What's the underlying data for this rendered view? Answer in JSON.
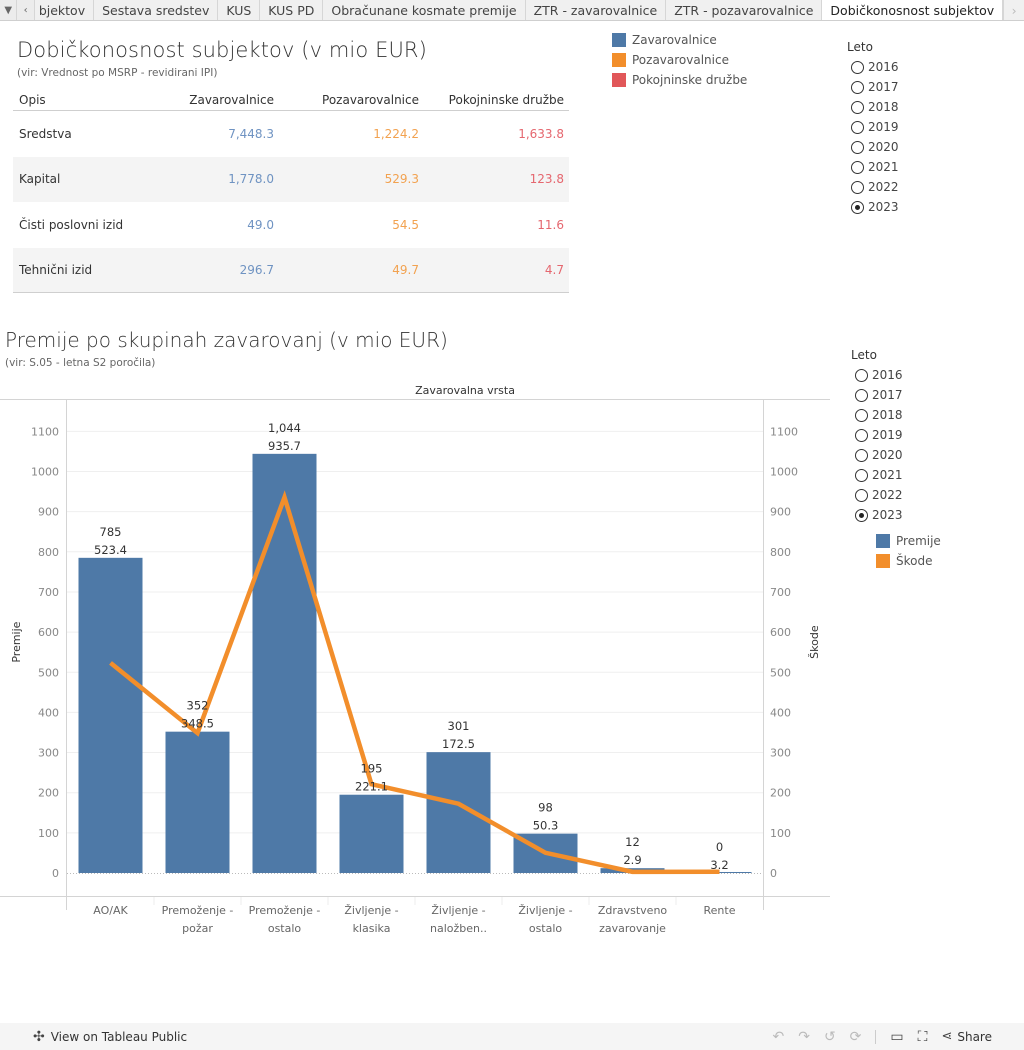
{
  "tabs": {
    "menu_icon": "▼",
    "prev_icon": "‹",
    "next_icon": "›",
    "items": [
      {
        "label": "bjektov",
        "active": false
      },
      {
        "label": "Sestava sredstev",
        "active": false
      },
      {
        "label": "KUS",
        "active": false
      },
      {
        "label": "KUS PD",
        "active": false
      },
      {
        "label": "Obračunane kosmate premije",
        "active": false
      },
      {
        "label": "ZTR - zavarovalnice",
        "active": false
      },
      {
        "label": "ZTR - pozavarovalnice",
        "active": false
      },
      {
        "label": "Dobičkonosnost subjektov",
        "active": true
      }
    ]
  },
  "section1": {
    "title": "Dobičkonosnost subjektov (v mio EUR)",
    "subtitle": "(vir: Vrednost po MSRP -  revidirani IPI)",
    "table": {
      "headers": [
        "Opis",
        "Zavarovalnice",
        "Pozavarovalnice",
        "Pokojninske družbe"
      ],
      "rows": [
        {
          "label": "Sredstva",
          "zav": "7,448.3",
          "poz": "1,224.2",
          "pok": "1,633.8"
        },
        {
          "label": "Kapital",
          "zav": "1,778.0",
          "poz": "529.3",
          "pok": "123.8"
        },
        {
          "label": "Čisti poslovni izid",
          "zav": "49.0",
          "poz": "54.5",
          "pok": "11.6"
        },
        {
          "label": "Tehnični izid",
          "zav": "296.7",
          "poz": "49.7",
          "pok": "4.7"
        }
      ]
    },
    "legend": [
      {
        "label": "Zavarovalnice",
        "color": "#4e79a7"
      },
      {
        "label": "Pozavarovalnice",
        "color": "#f28e2b"
      },
      {
        "label": "Pokojninske družbe",
        "color": "#e15759"
      }
    ],
    "filter": {
      "title": "Leto",
      "options": [
        "2016",
        "2017",
        "2018",
        "2019",
        "2020",
        "2021",
        "2022",
        "2023"
      ],
      "selected": "2023"
    }
  },
  "section2": {
    "title": "Premije po skupinah zavarovanj (v mio EUR)",
    "subtitle": "(vir: S.05 - letna S2 poročila)",
    "filter": {
      "title": "Leto",
      "options": [
        "2016",
        "2017",
        "2018",
        "2019",
        "2020",
        "2021",
        "2022",
        "2023"
      ],
      "selected": "2023"
    },
    "legend": [
      {
        "label": "Premije",
        "color": "#4e79a7"
      },
      {
        "label": "Škode",
        "color": "#f28e2b"
      }
    ]
  },
  "chart_data": {
    "type": "bar",
    "title": "Zavarovalna vrsta",
    "xlabel": "Zavarovalna vrsta",
    "ylabel": "Premije",
    "y2label": "Škode",
    "ylim": [
      0,
      1180
    ],
    "y2lim": [
      0,
      1180
    ],
    "yticks": [
      0,
      100,
      200,
      300,
      400,
      500,
      600,
      700,
      800,
      900,
      1000,
      1100
    ],
    "grid": true,
    "legend_position": "right",
    "categories": [
      [
        "AO/AK"
      ],
      [
        "Premoženje -",
        "požar"
      ],
      [
        "Premoženje -",
        "ostalo"
      ],
      [
        "Življenje -",
        "klasika"
      ],
      [
        "Življenje -",
        "naložben.."
      ],
      [
        "Življenje -",
        "ostalo"
      ],
      [
        "Zdravstveno",
        "zavarovanje"
      ],
      [
        "Rente"
      ]
    ],
    "series": [
      {
        "name": "Premije",
        "type": "bar",
        "color": "#4e79a7",
        "values": [
          785,
          352,
          1044,
          195,
          301,
          98,
          12,
          0
        ],
        "labels": [
          "785",
          "352",
          "1,044",
          "195",
          "301",
          "98",
          "12",
          "0"
        ]
      },
      {
        "name": "Škode",
        "type": "line",
        "color": "#f28e2b",
        "values": [
          523.4,
          348.5,
          935.7,
          221.1,
          172.5,
          50.3,
          2.9,
          3.2
        ],
        "labels": [
          "523.4",
          "348.5",
          "935.7",
          "221.1",
          "172.5",
          "50.3",
          "2.9",
          "3.2"
        ]
      }
    ]
  },
  "footer": {
    "view_label": "View on Tableau Public",
    "share_label": "Share",
    "undo_icon": "↶",
    "redo_icon": "↷",
    "revert_icon": "↺",
    "refresh_icon": "⟳",
    "device_icon": "▭",
    "fullscreen_icon": "⛶",
    "share_icon": "⋖"
  }
}
